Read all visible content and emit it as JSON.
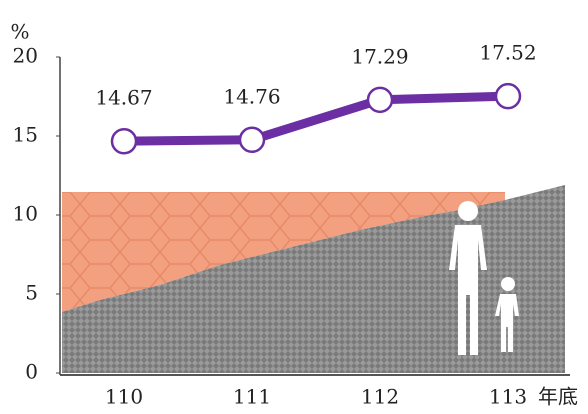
{
  "chart_data": {
    "type": "line",
    "y_label": "%",
    "x_label": "年底",
    "categories": [
      "110",
      "111",
      "112",
      "113"
    ],
    "values": [
      14.67,
      14.76,
      17.29,
      17.52
    ],
    "color": "#6b2fa3",
    "ylim": [
      0,
      20
    ],
    "yticks": [
      0,
      5,
      10,
      15,
      20
    ]
  }
}
